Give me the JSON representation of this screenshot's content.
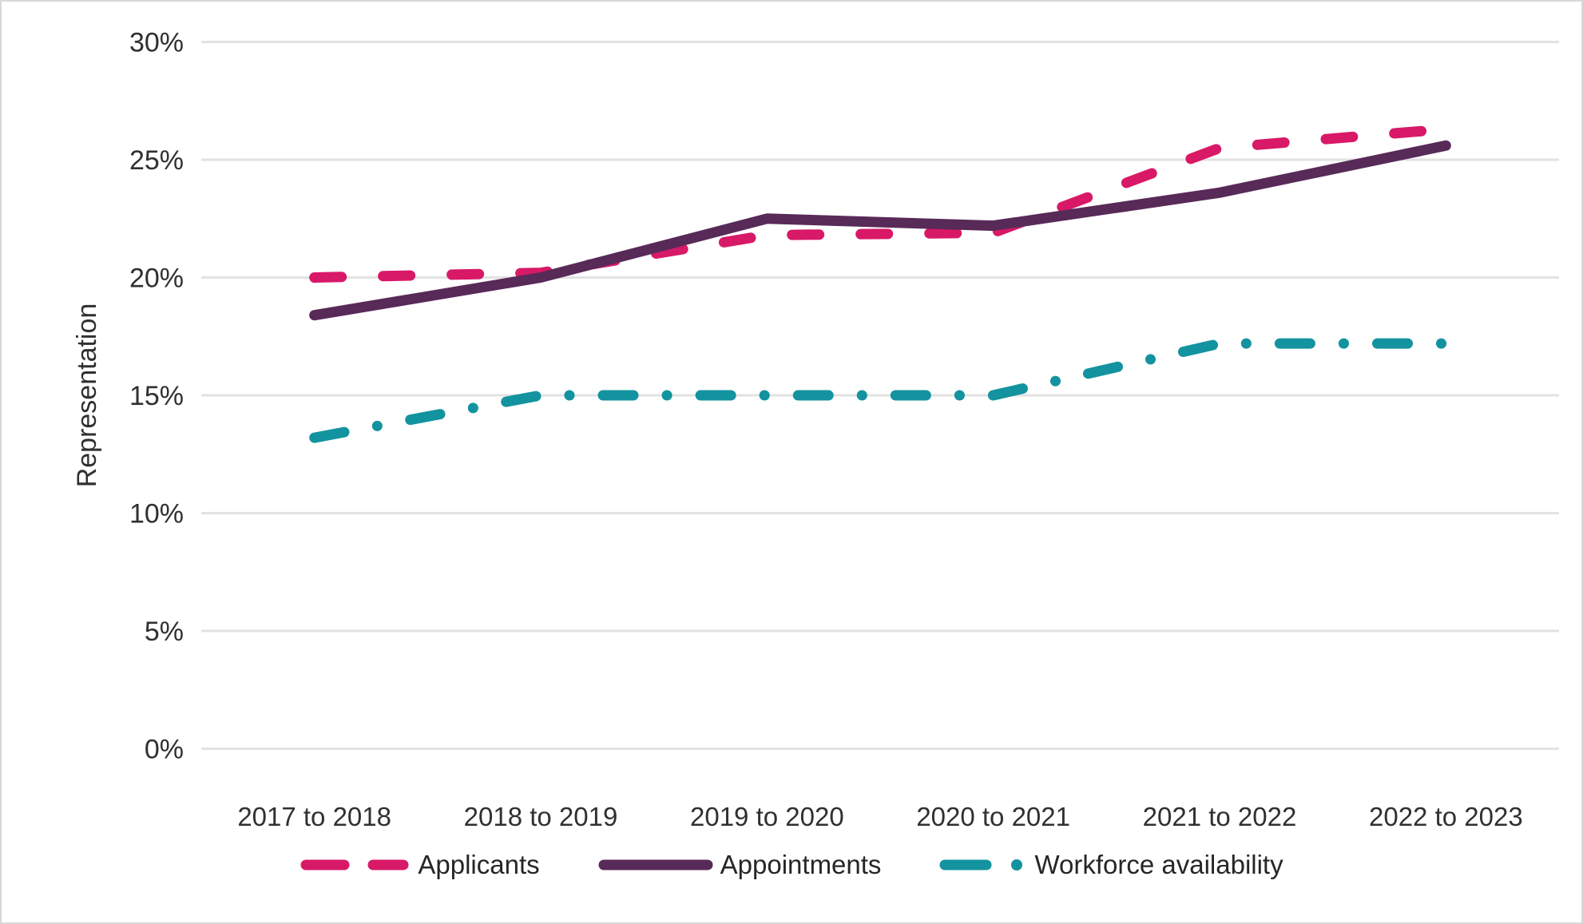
{
  "chart_data": {
    "type": "line",
    "categories": [
      "2017 to 2018",
      "2018 to 2019",
      "2019 to 2020",
      "2020 to 2021",
      "2021 to 2022",
      "2022 to 2023"
    ],
    "series": [
      {
        "name": "Applicants",
        "values": [
          20.0,
          20.2,
          21.8,
          21.9,
          25.5,
          26.3
        ],
        "color": "#D81967",
        "style": "dashed"
      },
      {
        "name": "Appointments",
        "values": [
          18.4,
          20.0,
          22.5,
          22.2,
          23.6,
          25.6
        ],
        "color": "#582A58",
        "style": "solid"
      },
      {
        "name": "Workforce availability",
        "values": [
          13.2,
          15.0,
          15.0,
          15.0,
          17.2,
          17.2
        ],
        "color": "#13939F",
        "style": "dash-dot"
      }
    ],
    "title": "",
    "xlabel": "",
    "ylabel": "Representation",
    "ylim": [
      0,
      30
    ],
    "ytick_step": 5,
    "ytick_labels": [
      "0%",
      "5%",
      "10%",
      "15%",
      "20%",
      "25%",
      "30%"
    ],
    "grid": true,
    "gridline_color": "#e2e2e2",
    "legend_position": "bottom"
  }
}
